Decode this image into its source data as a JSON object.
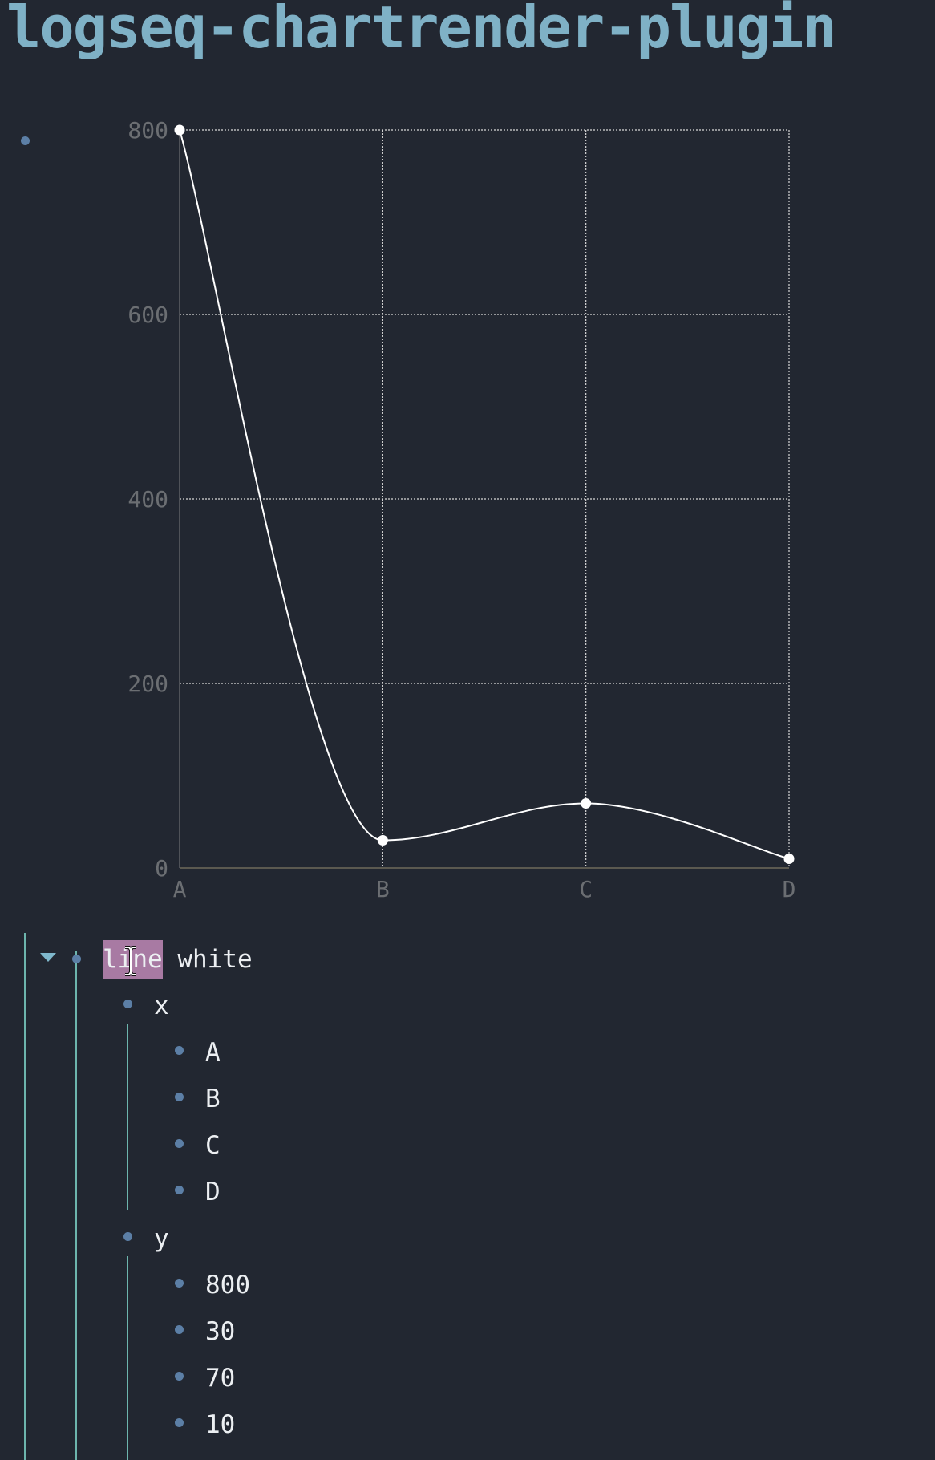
{
  "page": {
    "title": "logseq-chartrender-plugin"
  },
  "chart_data": {
    "type": "line",
    "categories": [
      "A",
      "B",
      "C",
      "D"
    ],
    "values": [
      800,
      30,
      70,
      10
    ],
    "series_color": "white",
    "title": "",
    "xlabel": "",
    "ylabel": "",
    "ylim": [
      0,
      800
    ],
    "yticks": [
      "0",
      "200",
      "400",
      "600",
      "800"
    ],
    "grid": true,
    "curve": "smooth"
  },
  "block": {
    "command_highlight": "line",
    "command_rest": " white",
    "x_label": "x",
    "x_items": [
      "A",
      "B",
      "C",
      "D"
    ],
    "y_label": "y",
    "y_items": [
      "800",
      "30",
      "70",
      "10"
    ]
  },
  "icons": {
    "collapse": "triangle-down-icon",
    "cursor": "text-cursor-icon",
    "bullet": "bullet-dot-icon"
  },
  "colors": {
    "background": "#222731",
    "title": "#7fb1c6",
    "bullet": "#5c7fa6",
    "guide": "#6db5ad",
    "highlight": "#a87aa3"
  }
}
